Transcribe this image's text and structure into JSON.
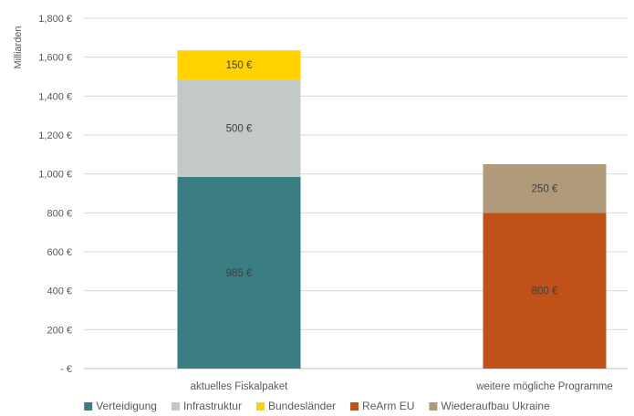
{
  "chart_data": {
    "type": "bar",
    "stacked": true,
    "title": "",
    "xlabel": "",
    "ylabel": "Milliarden",
    "ylim": [
      0,
      1800
    ],
    "yticks": [
      {
        "value": 0,
        "label": "- €"
      },
      {
        "value": 200,
        "label": "200 €"
      },
      {
        "value": 400,
        "label": "400 €"
      },
      {
        "value": 600,
        "label": "600 €"
      },
      {
        "value": 800,
        "label": "800 €"
      },
      {
        "value": 1000,
        "label": "1,000 €"
      },
      {
        "value": 1200,
        "label": "1,200 €"
      },
      {
        "value": 1400,
        "label": "1,400 €"
      },
      {
        "value": 1600,
        "label": "1,600 €"
      },
      {
        "value": 1800,
        "label": "1,800 €"
      }
    ],
    "grid": true,
    "legend_position": "bottom",
    "categories": [
      "aktuelles Fiskalpaket",
      "weitere mögliche Programme"
    ],
    "series": [
      {
        "name": "Verteidigung",
        "color": "#3a7d83",
        "values": [
          985,
          0
        ],
        "labels": [
          "985 €",
          ""
        ]
      },
      {
        "name": "Infrastruktur",
        "color": "#c3c9c6",
        "values": [
          500,
          0
        ],
        "labels": [
          "500 €",
          ""
        ]
      },
      {
        "name": "Bundesländer",
        "color": "#ffd200",
        "values": [
          150,
          0
        ],
        "labels": [
          "150 €",
          ""
        ]
      },
      {
        "name": "ReArm EU",
        "color": "#c05219",
        "values": [
          0,
          800
        ],
        "labels": [
          "",
          "800 €"
        ]
      },
      {
        "name": "Wiederaufbau Ukraine",
        "color": "#b09a7a",
        "values": [
          0,
          250
        ],
        "labels": [
          "",
          "250 €"
        ]
      }
    ]
  }
}
